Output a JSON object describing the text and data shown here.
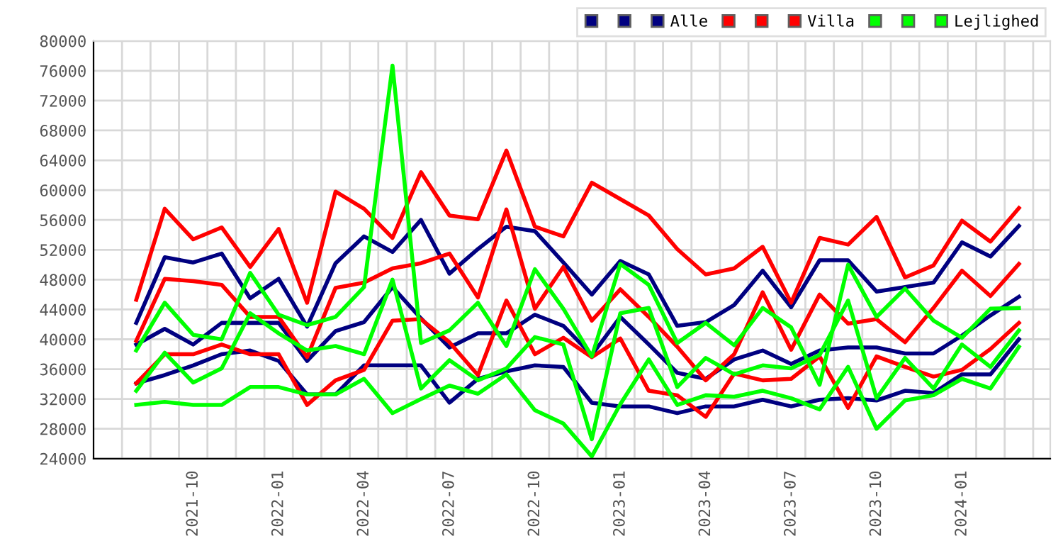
{
  "chart_data": {
    "type": "line",
    "categories": [
      null,
      null,
      "2021-10",
      null,
      null,
      "2022-01",
      null,
      null,
      "2022-04",
      null,
      null,
      "2022-07",
      null,
      null,
      "2022-10",
      null,
      null,
      "2023-01",
      null,
      null,
      "2023-04",
      null,
      null,
      "2023-07",
      null,
      null,
      "2023-10",
      null,
      null,
      "2024-01",
      null,
      null
    ],
    "series": [
      {
        "color": "#000080",
        "values": [
          42200,
          51000,
          50300,
          51500,
          45500,
          48100,
          41700,
          50200,
          53800,
          51700,
          56000,
          48800,
          52100,
          55100,
          54500,
          50300,
          46000,
          50500,
          48700,
          41800,
          42300,
          44600,
          49200,
          44300,
          50600,
          50600,
          46400,
          47000,
          47600,
          53000,
          51100,
          55200
        ]
      },
      {
        "color": "#000080",
        "values": [
          34100,
          35200,
          36500,
          38000,
          38500,
          37100,
          32600,
          32600,
          36500,
          36500,
          36500,
          31500,
          34700,
          35700,
          36500,
          36300,
          31500,
          31000,
          31000,
          30100,
          31000,
          31000,
          31900,
          31000,
          31900,
          32100,
          31800,
          33100,
          32800,
          35300,
          35300,
          40000
        ]
      },
      {
        "name": "Alle",
        "color": "#000080",
        "values": [
          39300,
          41400,
          39300,
          42200,
          42200,
          42200,
          37100,
          41100,
          42300,
          47000,
          42800,
          38900,
          40800,
          40800,
          43300,
          41800,
          37900,
          43000,
          39300,
          35500,
          34700,
          37300,
          38500,
          36700,
          38500,
          38900,
          38900,
          38100,
          38100,
          40500,
          43200,
          45700
        ]
      },
      {
        "color": "#ff0000",
        "values": [
          45300,
          57500,
          53400,
          55000,
          49700,
          54800,
          44900,
          59800,
          57500,
          53600,
          62400,
          56600,
          56100,
          65300,
          55100,
          53800,
          61000,
          58800,
          56600,
          52100,
          48700,
          49500,
          52400,
          44900,
          53600,
          52700,
          56400,
          48300,
          49900,
          55900,
          53100,
          57600
        ]
      },
      {
        "color": "#ff0000",
        "values": [
          34100,
          38000,
          38000,
          39300,
          38000,
          38000,
          31200,
          34500,
          35900,
          42500,
          42700,
          39600,
          35200,
          45200,
          38000,
          40200,
          37600,
          40100,
          33100,
          32500,
          29600,
          35400,
          34500,
          34700,
          37700,
          30800,
          37700,
          36300,
          35000,
          35900,
          38700,
          42200
        ]
      },
      {
        "name": "Villa",
        "color": "#ff0000",
        "values": [
          39800,
          48100,
          47800,
          47300,
          43000,
          43000,
          37600,
          46900,
          47600,
          49500,
          50200,
          51500,
          45600,
          57400,
          44100,
          49700,
          42500,
          46700,
          43000,
          39000,
          34500,
          38000,
          46300,
          38600,
          46000,
          42100,
          42700,
          39600,
          44200,
          49200,
          45800,
          50100
        ]
      },
      {
        "color": "#00ff00",
        "values": [
          38500,
          44900,
          40600,
          40000,
          48900,
          43300,
          41900,
          43000,
          47000,
          76700,
          39500,
          41200,
          44900,
          39100,
          49400,
          44100,
          37700,
          50100,
          47300,
          39500,
          42200,
          39200,
          44200,
          41600,
          33900,
          50000,
          43000,
          46800,
          42500,
          40200,
          44100,
          44200
        ]
      },
      {
        "color": "#00ff00",
        "values": [
          31200,
          31600,
          31200,
          31200,
          33600,
          33600,
          32600,
          32600,
          34700,
          30100,
          32000,
          33800,
          32700,
          35300,
          30500,
          28700,
          24300,
          31300,
          37300,
          31200,
          32500,
          32300,
          33100,
          32100,
          30600,
          36300,
          28000,
          31800,
          32500,
          34700,
          33400,
          39000
        ]
      },
      {
        "name": "Lejlighed",
        "color": "#00ff00",
        "values": [
          33100,
          38200,
          34200,
          36100,
          43500,
          40800,
          38500,
          39100,
          38000,
          48000,
          33400,
          37200,
          34500,
          36100,
          40300,
          39300,
          26600,
          43500,
          44200,
          33600,
          37500,
          35300,
          36500,
          36100,
          37900,
          45200,
          32100,
          37500,
          33400,
          39300,
          36300,
          41200
        ]
      }
    ],
    "ylim": [
      24000,
      80000
    ],
    "yticks": [
      24000,
      28000,
      32000,
      36000,
      40000,
      44000,
      48000,
      52000,
      56000,
      60000,
      64000,
      68000,
      72000,
      76000,
      80000
    ],
    "grid": true,
    "legend": "top right",
    "marker": "none",
    "line_style": "solid"
  }
}
